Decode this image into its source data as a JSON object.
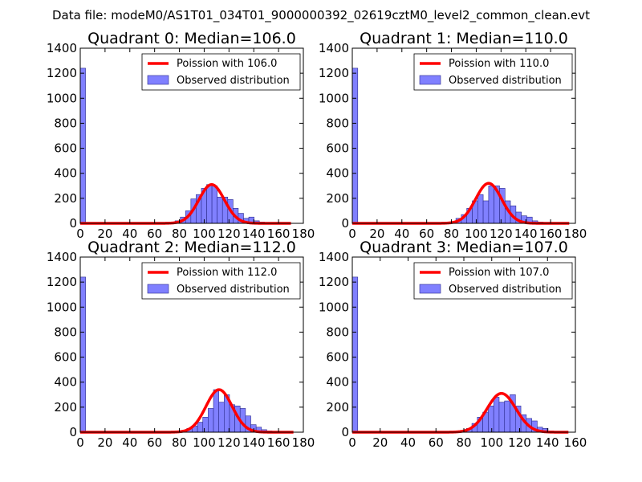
{
  "figure_title": "Data file: modeM0/AS1T01_034T01_9000000392_02619cztM0_level2_common_clean.evt",
  "colors": {
    "fit": "#ff0000",
    "bars_fill": "#8080ff",
    "bars_edge": "#2a2a8c",
    "axes": "#000000"
  },
  "chart_data": [
    {
      "type": "bar",
      "title": "Quadrant 0: Median=106.0",
      "xlim": [
        0,
        180
      ],
      "ylim": [
        0,
        1400
      ],
      "xticks": [
        "0",
        "20",
        "40",
        "60",
        "80",
        "100",
        "120",
        "140",
        "160",
        "180"
      ],
      "yticks": [
        "0",
        "200",
        "400",
        "600",
        "800",
        "1000",
        "1200",
        "1400"
      ],
      "legend": {
        "fit_label": "Poission with 106.0",
        "bars_label": "Observed distribution",
        "position": "top-right"
      },
      "fit_mean": 106.0,
      "fit_peak": 310,
      "fit_range": [
        0,
        170
      ],
      "bin_width": 4.25,
      "bars_x": [
        0,
        76.5,
        80.75,
        85,
        89.25,
        93.5,
        97.75,
        102,
        106.25,
        110.5,
        114.75,
        119,
        123.25,
        127.5,
        131.75,
        136,
        140.25,
        144.5
      ],
      "bars_y": [
        1240,
        20,
        50,
        100,
        195,
        230,
        280,
        310,
        300,
        210,
        210,
        190,
        120,
        80,
        40,
        50,
        20,
        10
      ]
    },
    {
      "type": "bar",
      "title": "Quadrant 1: Median=110.0",
      "xlim": [
        0,
        180
      ],
      "ylim": [
        0,
        1400
      ],
      "xticks": [
        "0",
        "20",
        "40",
        "60",
        "80",
        "100",
        "120",
        "140",
        "160",
        "180"
      ],
      "yticks": [
        "0",
        "200",
        "400",
        "600",
        "800",
        "1000",
        "1200",
        "1400"
      ],
      "legend": {
        "fit_label": "Poission with 110.0",
        "bars_label": "Observed distribution",
        "position": "top-right"
      },
      "fit_mean": 110.0,
      "fit_peak": 320,
      "fit_range": [
        0,
        175
      ],
      "bin_width": 4.4,
      "bars_x": [
        0,
        79.2,
        83.6,
        88,
        92.4,
        96.8,
        101.2,
        105.6,
        110,
        114.4,
        118.8,
        123.2,
        127.6,
        132,
        136.4,
        140.8,
        145.2,
        149.6
      ],
      "bars_y": [
        1240,
        10,
        40,
        70,
        120,
        180,
        230,
        180,
        300,
        300,
        280,
        180,
        140,
        90,
        60,
        50,
        20,
        10
      ]
    },
    {
      "type": "bar",
      "title": "Quadrant 2: Median=112.0",
      "xlim": [
        0,
        180
      ],
      "ylim": [
        0,
        1400
      ],
      "xticks": [
        "0",
        "20",
        "40",
        "60",
        "80",
        "100",
        "120",
        "140",
        "160",
        "180"
      ],
      "yticks": [
        "0",
        "200",
        "400",
        "600",
        "800",
        "1000",
        "1200",
        "1400"
      ],
      "legend": {
        "fit_label": "Poission with 112.0",
        "bars_label": "Observed distribution",
        "position": "top-right"
      },
      "fit_mean": 112.0,
      "fit_peak": 340,
      "fit_range": [
        0,
        172
      ],
      "bin_width": 4.3,
      "bars_x": [
        0,
        81.7,
        86,
        90.3,
        94.6,
        98.9,
        103.2,
        107.5,
        111.8,
        116.1,
        120.4,
        124.7,
        129,
        133.3,
        137.6,
        141.9,
        146.2,
        150.5
      ],
      "bars_y": [
        1240,
        10,
        30,
        50,
        80,
        120,
        190,
        340,
        240,
        300,
        220,
        210,
        190,
        130,
        60,
        40,
        20,
        10
      ]
    },
    {
      "type": "bar",
      "title": "Quadrant 3: Median=107.0",
      "xlim": [
        0,
        160
      ],
      "ylim": [
        0,
        1400
      ],
      "xticks": [
        "0",
        "20",
        "40",
        "60",
        "80",
        "100",
        "120",
        "140",
        "160"
      ],
      "yticks": [
        "0",
        "200",
        "400",
        "600",
        "800",
        "1000",
        "1200",
        "1400"
      ],
      "legend": {
        "fit_label": "Poission with 107.0",
        "bars_label": "Observed distribution",
        "position": "top-right"
      },
      "fit_mean": 107.0,
      "fit_peak": 310,
      "fit_range": [
        0,
        155
      ],
      "bin_width": 3.9,
      "bars_x": [
        0,
        78,
        81.9,
        85.8,
        89.7,
        93.6,
        97.5,
        101.4,
        105.3,
        109.2,
        113.1,
        117,
        120.9,
        124.8,
        128.7,
        132.6,
        136.5,
        140.4
      ],
      "bars_y": [
        1240,
        10,
        30,
        70,
        120,
        160,
        210,
        280,
        240,
        250,
        300,
        210,
        140,
        110,
        90,
        40,
        30,
        10
      ]
    }
  ]
}
